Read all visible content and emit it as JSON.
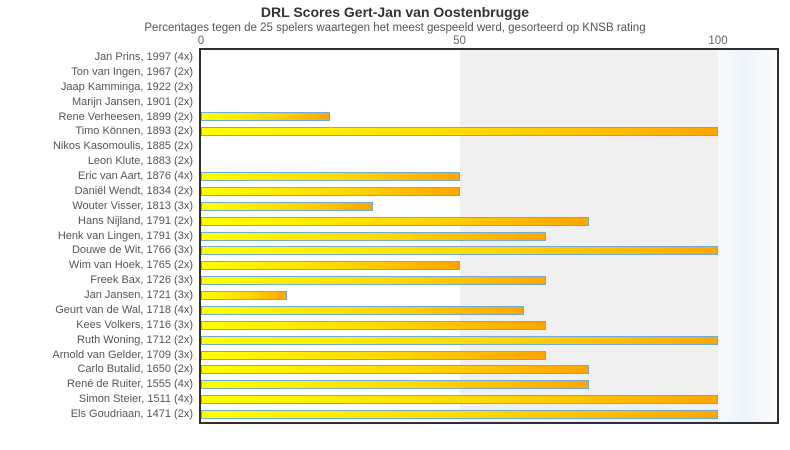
{
  "chart_data": {
    "type": "bar",
    "orientation": "horizontal",
    "title": "DRL Scores Gert-Jan van Oostenbrugge",
    "subtitle": "Percentages tegen de 25 spelers waartegen het meest gespeeld werd, gesorteerd op KNSB rating",
    "xlabel": "",
    "ylabel": "",
    "xlim": [
      0,
      100
    ],
    "x_ticks": [
      0,
      50,
      100
    ],
    "tick_position": "top",
    "legend": "none",
    "grid": "off",
    "shaded_band_x": [
      50,
      100
    ],
    "categories": [
      "Jan Prins, 1997 (4x)",
      "Ton van Ingen, 1967 (2x)",
      "Jaap Kamminga, 1922 (2x)",
      "Marijn Jansen, 1901 (2x)",
      "Rene Verheesen, 1899 (2x)",
      "Timo Können, 1893 (2x)",
      "Nikos Kasomoulis, 1885 (2x)",
      "Leon Klute, 1883 (2x)",
      "Eric van Aart, 1876 (4x)",
      "Daniël Wendt, 1834 (2x)",
      "Wouter Visser, 1813 (3x)",
      "Hans Nijland, 1791 (2x)",
      "Henk van Lingen, 1791 (3x)",
      "Douwe de Wit, 1766 (3x)",
      "Wim van Hoek, 1765 (2x)",
      "Freek Bax, 1726 (3x)",
      "Jan Jansen, 1721 (3x)",
      "Geurt van de Wal, 1718 (4x)",
      "Kees Volkers, 1716 (3x)",
      "Ruth Woning, 1712 (2x)",
      "Arnold van Gelder, 1709 (3x)",
      "Carlo Butalid, 1650 (2x)",
      "René de Ruiter, 1555 (4x)",
      "Simon Steier, 1511 (4x)",
      "Els Goudriaan, 1471 (2x)"
    ],
    "values": [
      0,
      0,
      0,
      0,
      25,
      100,
      0,
      0,
      50,
      50,
      33.3,
      75,
      66.7,
      100,
      50,
      66.7,
      16.7,
      62.5,
      66.7,
      100,
      66.7,
      75,
      75,
      100,
      100
    ],
    "colors": {
      "bar_gradient_start": "#ffff00",
      "bar_gradient_end": "#ffa500",
      "bar_border": "#70aad8",
      "shaded_band": "#f0f0f0",
      "plot_border": "#2e2e2e",
      "title_text": "#333333",
      "axis_text": "#666666",
      "label_text": "#555555"
    }
  }
}
